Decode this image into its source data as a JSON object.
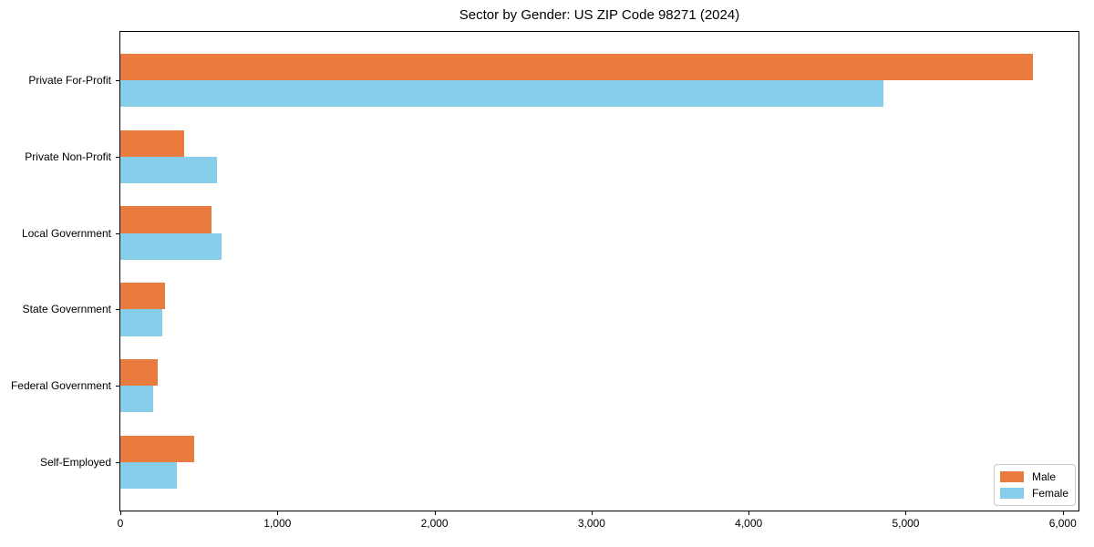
{
  "chart_data": {
    "type": "bar",
    "orientation": "horizontal",
    "title": "Sector by Gender: US ZIP Code 98271 (2024)",
    "categories": [
      "Private For-Profit",
      "Private Non-Profit",
      "Local Government",
      "State Government",
      "Federal Government",
      "Self-Employed"
    ],
    "series": [
      {
        "name": "Male",
        "color": "#e97b3e",
        "values": [
          5810,
          405,
          580,
          285,
          240,
          470
        ]
      },
      {
        "name": "Female",
        "color": "#87ceeb",
        "values": [
          4860,
          615,
          645,
          265,
          210,
          360
        ]
      }
    ],
    "xlabel": "",
    "ylabel": "",
    "xlim": [
      0,
      6100
    ],
    "xticks": [
      0,
      1000,
      2000,
      3000,
      4000,
      5000,
      6000
    ],
    "xtick_labels": [
      "0",
      "1,000",
      "2,000",
      "3,000",
      "4,000",
      "5,000",
      "6,000"
    ],
    "grid": false,
    "legend_position": "lower right",
    "legend_items": [
      {
        "label": "Male",
        "color": "#e97b3e"
      },
      {
        "label": "Female",
        "color": "#87ceeb"
      }
    ]
  }
}
